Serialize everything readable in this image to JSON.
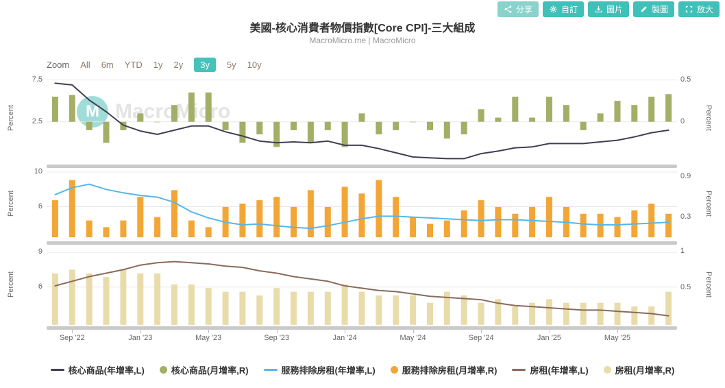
{
  "toolbar": {
    "buttons": [
      {
        "label": "分享",
        "icon": "share-icon",
        "color": "#8ad2cc"
      },
      {
        "label": "自訂",
        "icon": "gear-icon",
        "color": "#3fc0b8"
      },
      {
        "label": "圖片",
        "icon": "download-icon",
        "color": "#3fc0b8"
      },
      {
        "label": "製圖",
        "icon": "pen-icon",
        "color": "#3fc0b8"
      },
      {
        "label": "放大",
        "icon": "expand-icon",
        "color": "#3fc0b8"
      }
    ]
  },
  "range_selector": {
    "zoom_label": "Zoom",
    "options": [
      "All",
      "6m",
      "YTD",
      "1y",
      "2y",
      "3y",
      "5y",
      "10y"
    ],
    "selected": "3y",
    "selected_bg": "#45c3ba",
    "text_color": "#8a7b6c"
  },
  "watermark": {
    "logo_letter": "M",
    "text": "MacroMicro"
  },
  "chart_data": {
    "type": "bar+line multi-panel",
    "title": "美國-核心消費者物價指數[Core CPI]-三大組成",
    "subtitle": "MacroMicro.me | MacroMicro",
    "grid": "horizontal only",
    "x": [
      "Aug '22",
      "Sep '22",
      "Oct '22",
      "Nov '22",
      "Dec '22",
      "Jan '23",
      "Feb '23",
      "Mar '23",
      "Apr '23",
      "May '23",
      "Jun '23",
      "Jul '23",
      "Aug '23",
      "Sep '23",
      "Oct '23",
      "Nov '23",
      "Dec '23",
      "Jan '24",
      "Feb '24",
      "Mar '24",
      "Apr '24",
      "May '24",
      "Jun '24",
      "Jul '24",
      "Aug '24",
      "Sep '24",
      "Oct '24",
      "Nov '24",
      "Dec '24",
      "Jan '25",
      "Feb '25",
      "Mar '25",
      "Apr '25",
      "May '25",
      "Jun '25",
      "Jul '25",
      "Aug '25"
    ],
    "x_axis_labels_shown": [
      "Sep '22",
      "Jan '23",
      "May '23",
      "Sep '23",
      "Jan '24",
      "May '24",
      "Sep '24",
      "Jan '25",
      "May '25"
    ],
    "panels": [
      {
        "id": "core-goods",
        "left_axis": {
          "label": "Percent",
          "min": -2.6,
          "max": 8.2,
          "ticks": [
            7.5,
            2.5
          ]
        },
        "right_axis": {
          "label": "Percent",
          "min": -0.51,
          "max": 0.57,
          "ticks": [
            0.5,
            0
          ]
        },
        "series": [
          {
            "name": "核心商品(年增率,L)",
            "type": "line",
            "axis": "left",
            "color": "#3f3f52",
            "values": [
              7.1,
              6.9,
              5.1,
              3.7,
              2.1,
              1.4,
              1.0,
              1.5,
              2.0,
              2.0,
              1.3,
              0.8,
              0.2,
              0.0,
              0.1,
              0.0,
              0.2,
              -0.3,
              -0.3,
              -0.7,
              -1.2,
              -1.7,
              -1.8,
              -1.9,
              -1.9,
              -1.3,
              -1.0,
              -0.6,
              -0.5,
              -0.1,
              -0.1,
              -0.1,
              0.1,
              0.3,
              0.7,
              1.2,
              1.5
            ]
          },
          {
            "name": "核心商品(月增率,R)",
            "type": "bar",
            "axis": "right",
            "color": "#a4ae66",
            "values": [
              0.3,
              0.32,
              -0.1,
              -0.25,
              -0.1,
              0.1,
              0.0,
              0.2,
              0.35,
              0.35,
              -0.1,
              -0.25,
              -0.15,
              -0.3,
              -0.1,
              -0.25,
              -0.1,
              -0.3,
              0.1,
              -0.15,
              -0.1,
              0.0,
              -0.1,
              -0.2,
              -0.15,
              0.15,
              0.05,
              0.3,
              0.05,
              0.3,
              0.2,
              -0.1,
              0.1,
              0.25,
              0.2,
              0.3,
              0.33
            ]
          }
        ]
      },
      {
        "id": "services-ex-rent",
        "left_axis": {
          "label": "Percent",
          "min": 2.0,
          "max": 10.4,
          "ticks": [
            10,
            6
          ]
        },
        "right_axis": {
          "label": "Percent",
          "min": -0.06,
          "max": 1.02,
          "ticks": [
            0.9,
            0.3
          ]
        },
        "series": [
          {
            "name": "服務排除房租(年增率,L)",
            "type": "line",
            "axis": "left",
            "color": "#57b6e9",
            "values": [
              7.4,
              8.2,
              8.6,
              8.0,
              7.6,
              7.3,
              7.1,
              6.5,
              5.4,
              4.7,
              4.2,
              3.9,
              4.0,
              3.8,
              3.6,
              3.5,
              3.8,
              4.2,
              4.6,
              4.9,
              4.9,
              4.8,
              4.7,
              4.6,
              4.5,
              4.4,
              4.5,
              4.5,
              4.4,
              4.3,
              4.2,
              4.0,
              3.9,
              3.9,
              4.0,
              4.1,
              4.2
            ]
          },
          {
            "name": "服務排除房租(月增率,R)",
            "type": "bar",
            "axis": "right",
            "color": "#f3a636",
            "values": [
              0.55,
              0.85,
              0.25,
              0.15,
              0.25,
              0.6,
              0.3,
              0.7,
              0.25,
              0.15,
              0.45,
              0.5,
              0.55,
              0.6,
              0.45,
              0.7,
              0.45,
              0.75,
              0.65,
              0.85,
              0.6,
              0.3,
              0.2,
              0.25,
              0.4,
              0.55,
              0.45,
              0.35,
              0.45,
              0.6,
              0.45,
              0.35,
              0.35,
              0.3,
              0.4,
              0.5,
              0.35
            ]
          }
        ]
      },
      {
        "id": "rent",
        "left_axis": {
          "label": "Percent",
          "min": 2.6,
          "max": 9.6,
          "ticks": [
            9,
            6
          ]
        },
        "right_axis": {
          "label": "Percent",
          "min": -0.02,
          "max": 1.08,
          "ticks": [
            1,
            0.5
          ]
        },
        "series": [
          {
            "name": "房租(年增率,L)",
            "type": "line",
            "axis": "left",
            "color": "#8a6a5c",
            "values": [
              6.1,
              6.5,
              6.9,
              7.2,
              7.5,
              7.9,
              8.1,
              8.2,
              8.1,
              8.0,
              7.8,
              7.7,
              7.4,
              7.2,
              6.9,
              6.7,
              6.5,
              6.1,
              5.9,
              5.7,
              5.6,
              5.4,
              5.2,
              5.1,
              5.0,
              4.9,
              4.6,
              4.4,
              4.3,
              4.2,
              4.1,
              4.0,
              4.0,
              3.9,
              3.8,
              3.7,
              3.5
            ]
          },
          {
            "name": "房租(月增率,R)",
            "type": "bar",
            "axis": "right",
            "color": "#e9dcab",
            "values": [
              0.7,
              0.75,
              0.7,
              0.65,
              0.75,
              0.7,
              0.7,
              0.55,
              0.55,
              0.5,
              0.45,
              0.45,
              0.4,
              0.5,
              0.45,
              0.45,
              0.45,
              0.55,
              0.45,
              0.4,
              0.4,
              0.4,
              0.3,
              0.45,
              0.4,
              0.3,
              0.35,
              0.25,
              0.3,
              0.35,
              0.3,
              0.3,
              0.3,
              0.3,
              0.25,
              0.25,
              0.45
            ]
          }
        ]
      }
    ],
    "legend": [
      {
        "label": "核心商品(年增率,L)",
        "marker": "line",
        "color": "#3f3f52"
      },
      {
        "label": "核心商品(月增率,R)",
        "marker": "circle",
        "color": "#a4ae66"
      },
      {
        "label": "服務排除房租(年增率,L)",
        "marker": "line",
        "color": "#57b6e9"
      },
      {
        "label": "服務排除房租(月增率,R)",
        "marker": "circle",
        "color": "#f3a636"
      },
      {
        "label": "房租(年增率,L)",
        "marker": "line",
        "color": "#8a6a5c"
      },
      {
        "label": "房租(月增率,R)",
        "marker": "circle",
        "color": "#e9dcab"
      }
    ]
  }
}
